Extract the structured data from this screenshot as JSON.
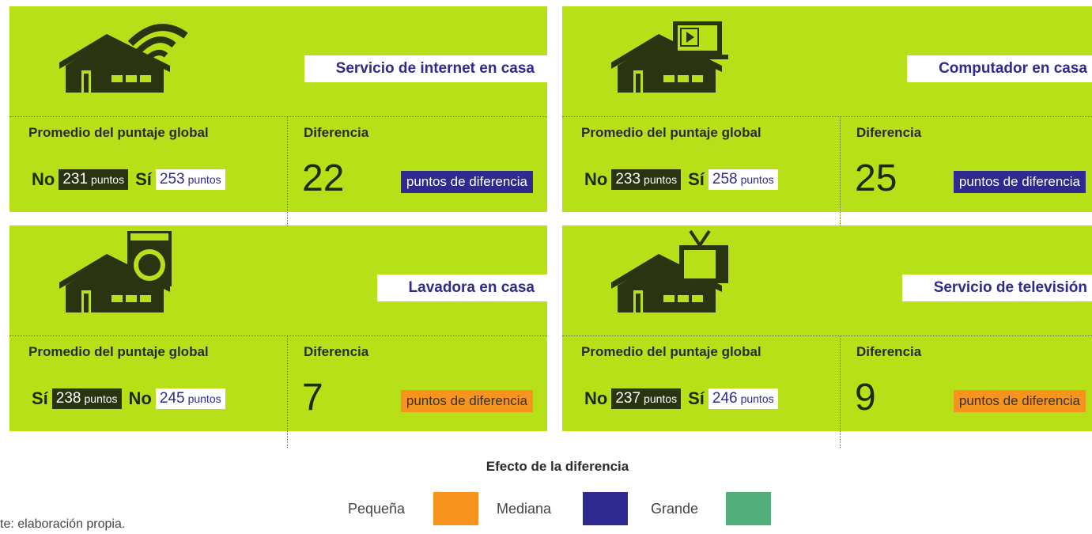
{
  "cards": [
    {
      "title": "Servicio de internet en casa",
      "avg_label": "Promedio del puntaje global",
      "diff_label": "Diferencia",
      "groups": [
        {
          "name": "No",
          "score": 231,
          "unit": "puntos"
        },
        {
          "name": "Sí",
          "score": 253,
          "unit": "puntos"
        }
      ],
      "difference": 22,
      "difference_text": "puntos de diferencia",
      "effect_color": "#2e2a8f"
    },
    {
      "title": "Computador en casa",
      "avg_label": "Promedio del puntaje global",
      "diff_label": "Diferencia",
      "groups": [
        {
          "name": "No",
          "score": 233,
          "unit": "puntos"
        },
        {
          "name": "Sí",
          "score": 258,
          "unit": "puntos"
        }
      ],
      "difference": 25,
      "difference_text": "puntos de diferencia",
      "effect_color": "#2e2a8f"
    },
    {
      "title": "Lavadora en casa",
      "avg_label": "Promedio del puntaje global",
      "diff_label": "Diferencia",
      "groups": [
        {
          "name": "Sí",
          "score": 238,
          "unit": "puntos"
        },
        {
          "name": "No",
          "score": 245,
          "unit": "puntos"
        }
      ],
      "difference": 7,
      "difference_text": "puntos de diferencia",
      "effect_color": "#f7941d"
    },
    {
      "title": "Servicio de televisión",
      "avg_label": "Promedio del puntaje global",
      "diff_label": "Diferencia",
      "groups": [
        {
          "name": "No",
          "score": 237,
          "unit": "puntos"
        },
        {
          "name": "Sí",
          "score": 246,
          "unit": "puntos"
        }
      ],
      "difference": 9,
      "difference_text": "puntos de diferencia",
      "effect_color": "#f7941d"
    }
  ],
  "legend": {
    "title": "Efecto de la diferencia",
    "items": [
      {
        "name": "Pequeña",
        "color": "#f7941d"
      },
      {
        "name": "Mediana",
        "color": "#2e2a8f"
      },
      {
        "name": "Grande",
        "color": "#52ae7a"
      }
    ]
  },
  "source": "te: elaboración propia."
}
